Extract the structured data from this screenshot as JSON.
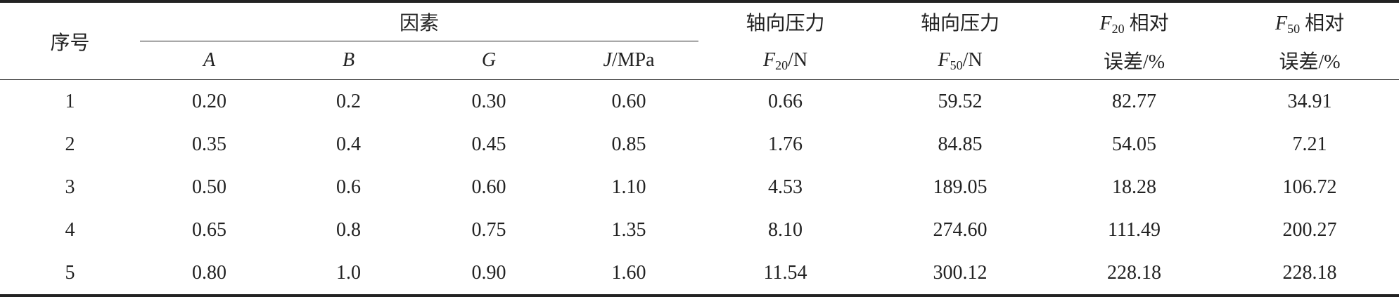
{
  "header": {
    "index": "序号",
    "factors": "因素",
    "factor_cols": [
      {
        "var": "A"
      },
      {
        "var": "B"
      },
      {
        "var": "G"
      },
      {
        "var": "J",
        "unit": "/MPa"
      }
    ],
    "measure_cols": [
      {
        "line1": "轴向压力",
        "var": "F",
        "sub": "20",
        "unit": "/N"
      },
      {
        "line1": "轴向压力",
        "var": "F",
        "sub": "50",
        "unit": "/N"
      },
      {
        "var": "F",
        "sub": "20",
        "suffix": "相对",
        "line2": "误差/%"
      },
      {
        "var": "F",
        "sub": "50",
        "suffix": "相对",
        "line2": "误差/%"
      }
    ]
  },
  "rows": [
    [
      "1",
      "0.20",
      "0.2",
      "0.30",
      "0.60",
      "0.66",
      "59.52",
      "82.77",
      "34.91"
    ],
    [
      "2",
      "0.35",
      "0.4",
      "0.45",
      "0.85",
      "1.76",
      "84.85",
      "54.05",
      "7.21"
    ],
    [
      "3",
      "0.50",
      "0.6",
      "0.60",
      "1.10",
      "4.53",
      "189.05",
      "18.28",
      "106.72"
    ],
    [
      "4",
      "0.65",
      "0.8",
      "0.75",
      "1.35",
      "8.10",
      "274.60",
      "111.49",
      "200.27"
    ],
    [
      "5",
      "0.80",
      "1.0",
      "0.90",
      "1.60",
      "11.54",
      "300.12",
      "228.18",
      "228.18"
    ]
  ]
}
